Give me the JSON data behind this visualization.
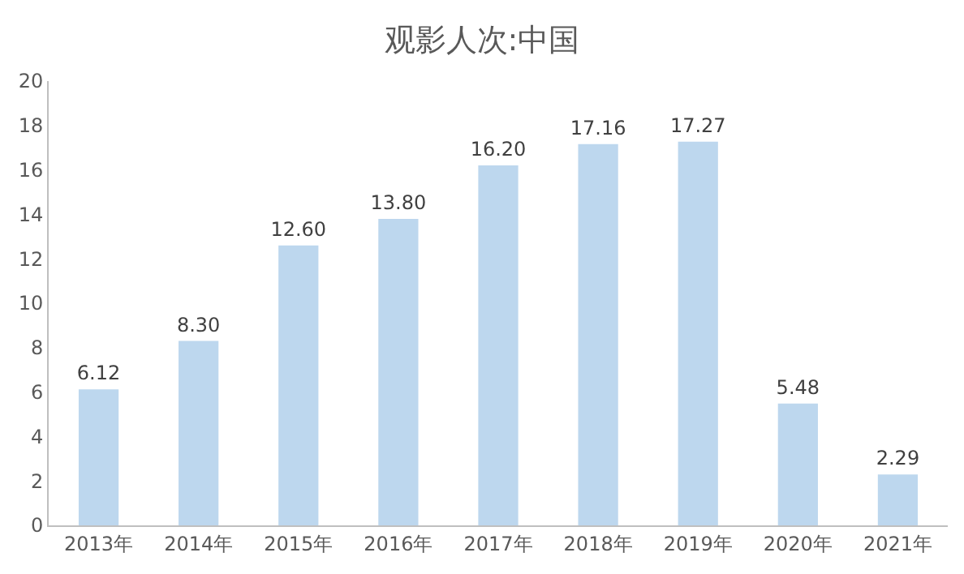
{
  "chart_data": {
    "type": "bar",
    "title": "观影人次:中国",
    "categories": [
      "2013年",
      "2014年",
      "2015年",
      "2016年",
      "2017年",
      "2018年",
      "2019年",
      "2020年",
      "2021年"
    ],
    "values": [
      6.12,
      8.3,
      12.6,
      13.8,
      16.2,
      17.16,
      17.27,
      5.48,
      2.29
    ],
    "value_labels": [
      "6.12",
      "8.30",
      "12.60",
      "13.80",
      "16.20",
      "17.16",
      "17.27",
      "5.48",
      "2.29"
    ],
    "color": "#bdd7ee",
    "ylim": [
      0,
      20
    ],
    "yticks": [
      0,
      2,
      4,
      6,
      8,
      10,
      12,
      14,
      16,
      18,
      20
    ],
    "grid": false
  }
}
